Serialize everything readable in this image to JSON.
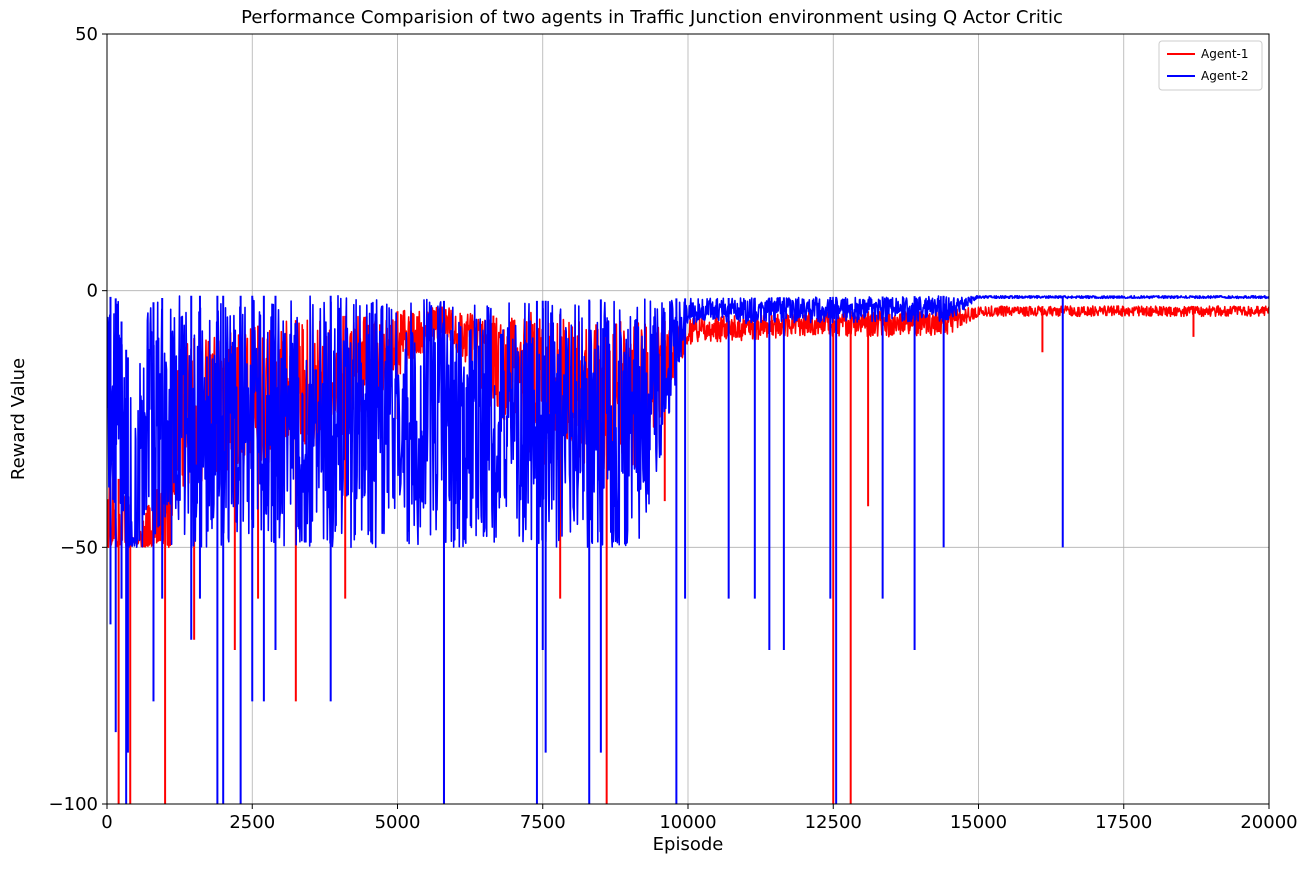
{
  "chart_data": {
    "type": "line",
    "title": "Performance Comparision of two agents in Traffic Junction environment using Q Actor Critic",
    "xlabel": "Episode",
    "ylabel": "Reward Value",
    "xlim": [
      0,
      20000
    ],
    "ylim": [
      -100,
      50
    ],
    "xticks": [
      0,
      2500,
      5000,
      7500,
      10000,
      12500,
      15000,
      17500,
      20000
    ],
    "yticks": [
      -100,
      -50,
      0,
      50
    ],
    "ytick_labels": [
      "−100",
      "−50",
      "0",
      "50"
    ],
    "grid": true,
    "legend_position": "top-right",
    "series": [
      {
        "name": "Agent-1",
        "color": "#ff0000",
        "baseline_points": [
          [
            0,
            -30
          ],
          [
            300,
            -40
          ],
          [
            600,
            -45
          ],
          [
            1000,
            -30
          ],
          [
            1200,
            -10
          ],
          [
            2000,
            -8
          ],
          [
            3000,
            -6
          ],
          [
            4000,
            -5
          ],
          [
            5000,
            -4
          ],
          [
            5800,
            -3
          ],
          [
            6500,
            -5
          ],
          [
            7500,
            -4
          ],
          [
            8500,
            -6
          ],
          [
            9500,
            -6
          ],
          [
            10500,
            -5
          ],
          [
            12000,
            -4
          ],
          [
            14000,
            -4
          ],
          [
            15000,
            -3
          ],
          [
            16000,
            -3
          ],
          [
            17000,
            -3
          ],
          [
            18000,
            -3
          ],
          [
            19000,
            -3
          ],
          [
            20000,
            -3
          ]
        ],
        "noise_band": [
          [
            0,
            20
          ],
          [
            1200,
            30
          ],
          [
            4000,
            25
          ],
          [
            5800,
            5
          ],
          [
            7400,
            30
          ],
          [
            9200,
            30
          ],
          [
            10000,
            5
          ],
          [
            14500,
            5
          ],
          [
            15000,
            2
          ],
          [
            20000,
            2
          ]
        ],
        "spikes": [
          [
            200,
            -100
          ],
          [
            400,
            -100
          ],
          [
            1000,
            -100
          ],
          [
            1500,
            -68
          ],
          [
            2200,
            -70
          ],
          [
            2600,
            -60
          ],
          [
            3250,
            -80
          ],
          [
            4100,
            -60
          ],
          [
            5000,
            -25
          ],
          [
            5800,
            -100
          ],
          [
            6650,
            -21
          ],
          [
            7800,
            -60
          ],
          [
            8600,
            -100
          ],
          [
            9600,
            -41
          ],
          [
            12500,
            -100
          ],
          [
            12800,
            -100
          ],
          [
            13100,
            -42
          ],
          [
            16100,
            -12
          ],
          [
            18700,
            -9
          ]
        ]
      },
      {
        "name": "Agent-2",
        "color": "#0000ff",
        "baseline_points": [
          [
            0,
            -1.5
          ],
          [
            100,
            -1
          ],
          [
            200,
            -2
          ],
          [
            300,
            -10
          ],
          [
            500,
            -20
          ],
          [
            700,
            -3
          ],
          [
            900,
            -1.5
          ],
          [
            1200,
            -1
          ],
          [
            5000,
            -1
          ],
          [
            5800,
            -2
          ],
          [
            7400,
            -2
          ],
          [
            9200,
            -1.5
          ],
          [
            10000,
            -1.5
          ],
          [
            14500,
            -1
          ],
          [
            20000,
            -1
          ]
        ],
        "noise_band": [
          [
            0,
            45
          ],
          [
            1200,
            50
          ],
          [
            3600,
            50
          ],
          [
            5800,
            48
          ],
          [
            7400,
            50
          ],
          [
            9200,
            50
          ],
          [
            10000,
            5
          ],
          [
            14500,
            5
          ],
          [
            15000,
            0.5
          ],
          [
            20000,
            0.5
          ]
        ],
        "spikes": [
          [
            60,
            -65
          ],
          [
            150,
            -86
          ],
          [
            250,
            -60
          ],
          [
            330,
            -100
          ],
          [
            360,
            -90
          ],
          [
            800,
            -80
          ],
          [
            950,
            -60
          ],
          [
            1450,
            -68
          ],
          [
            1600,
            -60
          ],
          [
            1900,
            -100
          ],
          [
            2000,
            -100
          ],
          [
            2300,
            -100
          ],
          [
            2500,
            -80
          ],
          [
            2700,
            -80
          ],
          [
            2900,
            -70
          ],
          [
            3850,
            -80
          ],
          [
            5800,
            -100
          ],
          [
            7400,
            -100
          ],
          [
            7500,
            -70
          ],
          [
            7550,
            -90
          ],
          [
            8300,
            -100
          ],
          [
            8500,
            -90
          ],
          [
            9800,
            -100
          ],
          [
            9950,
            -60
          ],
          [
            10700,
            -60
          ],
          [
            11150,
            -60
          ],
          [
            11400,
            -70
          ],
          [
            11650,
            -70
          ],
          [
            12450,
            -60
          ],
          [
            12550,
            -100
          ],
          [
            13350,
            -60
          ],
          [
            13900,
            -70
          ],
          [
            14400,
            -50
          ],
          [
            16450,
            -50
          ]
        ]
      }
    ]
  }
}
